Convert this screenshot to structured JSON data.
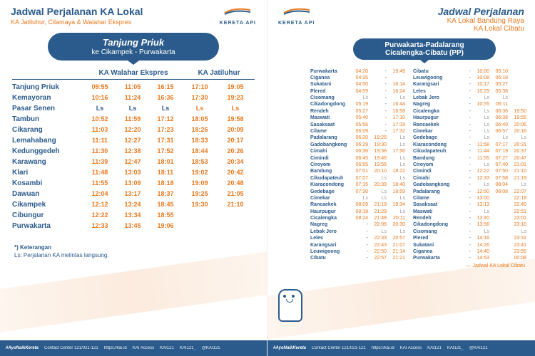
{
  "colors": {
    "primary": "#2b5b8c",
    "accent": "#e8791f",
    "bg": "#ffffff"
  },
  "left": {
    "title": "Jadwal Perjalanan KA Lokal",
    "subtitle": "KA Jatiluhur, Cilamaya & Walahar Ekspres",
    "logo_text": "KERETA API",
    "route_main": "Tanjung Priuk",
    "route_sub": "ke Cikampek - Purwakarta",
    "col1_header": "KA Walahar Ekspres",
    "col2_header": "KA Jatiluhur",
    "stations": [
      {
        "n": "Tanjung Priuk",
        "t": [
          "09:55",
          "11:05",
          "16:15"
        ],
        "j": [
          "17:10",
          "19:05"
        ]
      },
      {
        "n": "Kemayoran",
        "t": [
          "10:16",
          "11:24",
          "16:36"
        ],
        "j": [
          "17:30",
          "19:23"
        ]
      },
      {
        "n": "Pasar Senen",
        "t": [
          "Ls",
          "Ls",
          "Ls"
        ],
        "j": [
          "Ls",
          "Ls"
        ]
      },
      {
        "n": "Tambun",
        "t": [
          "10:52",
          "11:59",
          "17:12"
        ],
        "j": [
          "18:05",
          "19:58"
        ]
      },
      {
        "n": "Cikarang",
        "t": [
          "11:03",
          "12:20",
          "17:23"
        ],
        "j": [
          "18:26",
          "20:09"
        ]
      },
      {
        "n": "Lemahabang",
        "t": [
          "11:11",
          "12:27",
          "17:31"
        ],
        "j": [
          "18:33",
          "20:17"
        ]
      },
      {
        "n": "Kedunggedeh",
        "t": [
          "11:30",
          "12:38",
          "17:52"
        ],
        "j": [
          "18:44",
          "20:26"
        ]
      },
      {
        "n": "Karawang",
        "t": [
          "11:39",
          "12:47",
          "18:01"
        ],
        "j": [
          "18:53",
          "20:34"
        ]
      },
      {
        "n": "Klari",
        "t": [
          "11:48",
          "13:03",
          "18:11"
        ],
        "j": [
          "19:02",
          "20:42"
        ]
      },
      {
        "n": "Kosambi",
        "t": [
          "11:55",
          "13:09",
          "18:18"
        ],
        "j": [
          "19:09",
          "20:48"
        ]
      },
      {
        "n": "Dawuan",
        "t": [
          "12:04",
          "13:17",
          "18:37"
        ],
        "j": [
          "19:25",
          "21:05"
        ]
      },
      {
        "n": "Cikampek",
        "t": [
          "12:12",
          "13:24",
          "18:45"
        ],
        "j": [
          "19:30",
          "21:10"
        ]
      },
      {
        "n": "Cibungur",
        "t": [
          "12:22",
          "13:34",
          "18:55"
        ],
        "j": [
          "",
          ""
        ]
      },
      {
        "n": "Purwakarta",
        "t": [
          "12:33",
          "13:45",
          "19:06"
        ],
        "j": [
          "",
          ""
        ]
      }
    ],
    "note_title": "*) Keterangan",
    "note_text": "Ls: Perjalanan KA melintas langsung."
  },
  "right": {
    "title": "Jadwal Perjalanan",
    "sub1": "KA Lokal Bandung Raya",
    "sub2": "KA Lokal Cibatu",
    "logo_text": "KERETA API",
    "route1": "Purwakarta-Padalarang",
    "route2": "Cicalengka-Cibatu (PP)",
    "legend": "Jadwal KA Lokal Cibatu",
    "colA": [
      {
        "n": "Purwakarta",
        "a": "04:20",
        "b": "-",
        "c": "19:49"
      },
      {
        "n": "Ciganea",
        "a": "04:35",
        "b": "-",
        "c": ""
      },
      {
        "n": "Sukatani",
        "a": "04:50",
        "b": "-",
        "c": "16:14"
      },
      {
        "n": "Plered",
        "a": "04:59",
        "b": "-",
        "c": "16:24"
      },
      {
        "n": "Cisomang",
        "a": "Ls",
        "b": "-",
        "c": "Ls"
      },
      {
        "n": "Cikadongdong",
        "a": "05:19",
        "b": "-",
        "c": "16:44"
      },
      {
        "n": "Rendeh",
        "a": "05:27",
        "b": "-",
        "c": "16:58"
      },
      {
        "n": "Maswati",
        "a": "05:40",
        "b": "-",
        "c": "17:10"
      },
      {
        "n": "Sasaksaat",
        "a": "05:56",
        "b": "-",
        "c": "17:19"
      },
      {
        "n": "Cilame",
        "a": "06:09",
        "b": "-",
        "c": "17:32"
      },
      {
        "n": "Padalarang",
        "a": "06:20",
        "b": "19:25",
        "c": "Ls"
      },
      {
        "n": "Gadobangkong",
        "a": "06:29",
        "b": "19:30",
        "c": "Ls"
      },
      {
        "n": "Cimahi",
        "a": "06:36",
        "b": "19:38",
        "c": "17:56"
      },
      {
        "n": "Cimindi",
        "a": "06:45",
        "b": "19:46",
        "c": "Ls"
      },
      {
        "n": "Ciroyom",
        "a": "06:55",
        "b": "19:55",
        "c": "Ls"
      },
      {
        "n": "Bandung",
        "a": "07:01",
        "b": "20:10",
        "c": "18:22"
      },
      {
        "n": "Cikudapateuh",
        "a": "07:07",
        "b": "Ls",
        "c": "Ls"
      },
      {
        "n": "Kiaracondong",
        "a": "07:15",
        "b": "20:39",
        "c": "18:40"
      },
      {
        "n": "Gedebage",
        "a": "07:30",
        "b": "Ls",
        "c": "18:59"
      },
      {
        "n": "Cimekar",
        "a": "Ls",
        "b": "Ls",
        "c": "Ls"
      },
      {
        "n": "Rancaekek",
        "a": "08:09",
        "b": "21:19",
        "c": "19:34"
      },
      {
        "n": "Haurpugur",
        "a": "08:18",
        "b": "21:29",
        "c": "Ls"
      },
      {
        "n": "Cicalengka",
        "a": "08:24",
        "b": "21:48",
        "c": "20:11"
      },
      {
        "n": "Nagreg",
        "a": "-",
        "b": "22:06",
        "c": "20:30"
      },
      {
        "n": "Lebak Jero",
        "a": "-",
        "b": "Ls",
        "c": "Ls"
      },
      {
        "n": "Leles",
        "a": "-",
        "b": "22:33",
        "c": "20:57"
      },
      {
        "n": "Karangsari",
        "a": "-",
        "b": "22:43",
        "c": "21:07"
      },
      {
        "n": "Leuwigoong",
        "a": "-",
        "b": "22:50",
        "c": "21:14"
      },
      {
        "n": "Cibatu",
        "a": "-",
        "b": "22:57",
        "c": "21:21"
      }
    ],
    "colB": [
      {
        "n": "Cibatu",
        "a": "-",
        "b": "10:00",
        "c": "05:10"
      },
      {
        "n": "Leuwigoong",
        "a": "-",
        "b": "10:08",
        "c": "05:18"
      },
      {
        "n": "Karangsari",
        "a": "-",
        "b": "10:17",
        "c": "05:27"
      },
      {
        "n": "Leles",
        "a": "-",
        "b": "10:29",
        "c": "05:38"
      },
      {
        "n": "Lebak Jero",
        "a": "-",
        "b": "Ls",
        "c": "Ls"
      },
      {
        "n": "Nagreg",
        "a": "-",
        "b": "10:55",
        "c": "06:11"
      },
      {
        "n": "Cicalengka",
        "a": "-",
        "b": "Ls",
        "c": "06:36",
        "d": "19:50"
      },
      {
        "n": "Haurpugur",
        "a": "-",
        "b": "Ls",
        "c": "06:38",
        "d": "19:55"
      },
      {
        "n": "Rancaekek",
        "a": "-",
        "b": "Ls",
        "c": "06:49",
        "d": "20:06"
      },
      {
        "n": "Cimekar",
        "a": "-",
        "b": "Ls",
        "c": "06:57",
        "d": "20:16"
      },
      {
        "n": "Gedebage",
        "a": "-",
        "b": "Ls",
        "c": "Ls",
        "d": "Ls"
      },
      {
        "n": "Kiaracondong",
        "a": "-",
        "b": "11:58",
        "c": "07:17",
        "d": "20:31"
      },
      {
        "n": "Cikudapateuh",
        "a": "-",
        "b": "11:44",
        "c": "07:19",
        "d": "20:37"
      },
      {
        "n": "Bandung",
        "a": "-",
        "b": "11:55",
        "c": "07:27",
        "d": "20:47"
      },
      {
        "n": "Ciroyom",
        "a": "-",
        "b": "Ls",
        "c": "07:40",
        "d": "21:01"
      },
      {
        "n": "Cimindi",
        "a": "-",
        "b": "12:22",
        "c": "07:50",
        "d": "21:10"
      },
      {
        "n": "Cimahi",
        "a": "-",
        "b": "12:33",
        "c": "07:58",
        "d": "21:19"
      },
      {
        "n": "Gadobangkong",
        "a": "-",
        "b": "Ls",
        "c": "08:04",
        "d": "Ls"
      },
      {
        "n": "Padalarang",
        "a": "-",
        "b": "12:50",
        "c": "08:08",
        "d": "22:07"
      },
      {
        "n": "Cilame",
        "a": "-",
        "b": "13:00",
        "c": "",
        "d": "22:19"
      },
      {
        "n": "Sasaksaat",
        "a": "-",
        "b": "13:13",
        "c": "",
        "d": "22:40"
      },
      {
        "n": "Maswati",
        "a": "-",
        "b": "Ls",
        "c": "",
        "d": "22:51"
      },
      {
        "n": "Rendeh",
        "a": "-",
        "b": "13:40",
        "c": "",
        "d": "23:01"
      },
      {
        "n": "Cikadongdong",
        "a": "-",
        "b": "13:56",
        "c": "",
        "d": "23:10"
      },
      {
        "n": "Cisomang",
        "a": "-",
        "b": "Ls",
        "c": "",
        "d": "Ls"
      },
      {
        "n": "Plered",
        "a": "-",
        "b": "14:16",
        "c": "",
        "d": "23:31"
      },
      {
        "n": "Sukatani",
        "a": "-",
        "b": "14:26",
        "c": "",
        "d": "23:41"
      },
      {
        "n": "Ciganea",
        "a": "-",
        "b": "14:40",
        "c": "",
        "d": "23:55"
      },
      {
        "n": "Purwakarta",
        "a": "-",
        "b": "14:53",
        "c": "",
        "d": "00:08"
      }
    ]
  },
  "footer": {
    "hashtag": "#AyoNaikKereta",
    "items": [
      "Contact Center 121/021-121",
      "https://kai.id",
      "KAI Access",
      "KAI121",
      "KAI121_",
      "@KAI121"
    ]
  }
}
